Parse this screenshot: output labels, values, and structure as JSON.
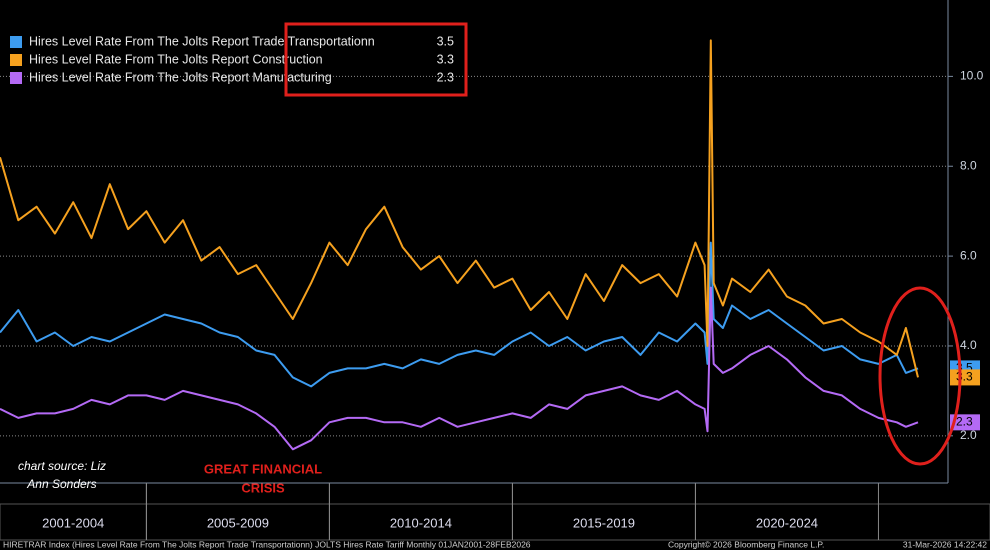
{
  "chart_data": {
    "type": "line",
    "x": [
      2001.0,
      2001.5,
      2002.0,
      2002.5,
      2003.0,
      2003.5,
      2004.0,
      2004.5,
      2005.0,
      2005.5,
      2006.0,
      2006.5,
      2007.0,
      2007.5,
      2008.0,
      2008.5,
      2009.0,
      2009.5,
      2010.0,
      2010.5,
      2011.0,
      2011.5,
      2012.0,
      2012.5,
      2013.0,
      2013.5,
      2014.0,
      2014.5,
      2015.0,
      2015.5,
      2016.0,
      2016.5,
      2017.0,
      2017.5,
      2018.0,
      2018.5,
      2019.0,
      2019.5,
      2020.0,
      2020.25,
      2020.33,
      2020.42,
      2020.5,
      2020.75,
      2021.0,
      2021.5,
      2022.0,
      2022.5,
      2023.0,
      2023.5,
      2024.0,
      2024.5,
      2025.0,
      2025.5,
      2025.75,
      2026.08
    ],
    "series": [
      {
        "name": "Hires Level Rate From The Jolts Report Trade Transportationn",
        "color": "#3d9cf0",
        "values": [
          4.3,
          4.8,
          4.1,
          4.3,
          4.0,
          4.2,
          4.1,
          4.3,
          4.5,
          4.7,
          4.6,
          4.5,
          4.3,
          4.2,
          3.9,
          3.8,
          3.3,
          3.1,
          3.4,
          3.5,
          3.5,
          3.6,
          3.5,
          3.7,
          3.6,
          3.8,
          3.9,
          3.8,
          4.1,
          4.3,
          4.0,
          4.2,
          3.9,
          4.1,
          4.2,
          3.8,
          4.3,
          4.1,
          4.5,
          4.3,
          3.6,
          6.3,
          4.6,
          4.4,
          4.9,
          4.6,
          4.8,
          4.5,
          4.2,
          3.9,
          4.0,
          3.7,
          3.6,
          3.8,
          3.4,
          3.5
        ]
      },
      {
        "name": "Hires Level Rate From The Jolts Report Construction",
        "color": "#f5a11f",
        "values": [
          8.2,
          6.8,
          7.1,
          6.5,
          7.2,
          6.4,
          7.6,
          6.6,
          7.0,
          6.3,
          6.8,
          5.9,
          6.2,
          5.6,
          5.8,
          5.2,
          4.6,
          5.4,
          6.3,
          5.8,
          6.6,
          7.1,
          6.2,
          5.7,
          6.0,
          5.4,
          5.9,
          5.3,
          5.5,
          4.8,
          5.2,
          4.6,
          5.6,
          5.0,
          5.8,
          5.4,
          5.6,
          5.1,
          6.3,
          5.8,
          4.0,
          10.8,
          5.4,
          4.9,
          5.5,
          5.2,
          5.7,
          5.1,
          4.9,
          4.5,
          4.6,
          4.3,
          4.1,
          3.8,
          4.4,
          3.3
        ]
      },
      {
        "name": "Hires Level Rate From The Jolts Report Manufacturing",
        "color": "#b46af5",
        "values": [
          2.6,
          2.4,
          2.5,
          2.5,
          2.6,
          2.8,
          2.7,
          2.9,
          2.9,
          2.8,
          3.0,
          2.9,
          2.8,
          2.7,
          2.5,
          2.2,
          1.7,
          1.9,
          2.3,
          2.4,
          2.4,
          2.3,
          2.3,
          2.2,
          2.4,
          2.2,
          2.3,
          2.4,
          2.5,
          2.4,
          2.7,
          2.6,
          2.9,
          3.0,
          3.1,
          2.9,
          2.8,
          3.0,
          2.7,
          2.6,
          2.1,
          5.3,
          3.6,
          3.4,
          3.5,
          3.8,
          4.0,
          3.7,
          3.3,
          3.0,
          2.9,
          2.6,
          2.4,
          2.3,
          2.2,
          2.3
        ]
      }
    ],
    "xlim": [
      2001.0,
      2026.9
    ],
    "ylim": [
      0.95,
      11.7
    ],
    "yticks": [
      {
        "value": 2,
        "label": "2.0"
      },
      {
        "value": 4,
        "label": "4.0"
      },
      {
        "value": 6,
        "label": "6.0"
      },
      {
        "value": 8,
        "label": "8.0"
      },
      {
        "value": 10,
        "label": "10.0"
      }
    ],
    "grid": true,
    "x_periods": [
      {
        "label": "2001-2004",
        "start": 2001,
        "end": 2005
      },
      {
        "label": "2005-2009",
        "start": 2005,
        "end": 2010
      },
      {
        "label": "2010-2014",
        "start": 2010,
        "end": 2015
      },
      {
        "label": "2015-2019",
        "start": 2015,
        "end": 2020
      },
      {
        "label": "2020-2024",
        "start": 2020,
        "end": 2025
      }
    ],
    "source_note": [
      "chart source: Liz",
      "Ann Sonders"
    ],
    "crisis_note": [
      "GREAT FINANCIAL",
      "CRISIS"
    ],
    "footer": [
      "HIRETRAR Index (Hires Level Rate From The Jolts Report Trade Transportationn) JOLTS Hires Rate Tariff Monthly 01JAN2001-28FEB2026",
      "Copyright© 2026 Bloomberg Finance L.P.",
      "31-Mar-2026 14:22:42"
    ]
  }
}
